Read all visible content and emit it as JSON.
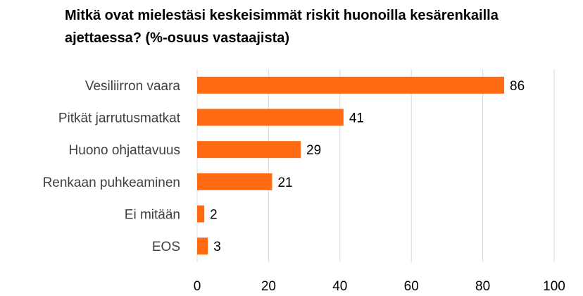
{
  "chart_data": {
    "type": "bar",
    "orientation": "horizontal",
    "title": "Mitkä ovat mielestäsi keskeisimmät riskit huonoilla kesärenkailla ajettaessa? (%-osuus vastaajista)",
    "categories": [
      "Vesiliirron vaara",
      "Pitkät jarrutusmatkat",
      "Huono ohjattavuus",
      "Renkaan puhkeaminen",
      "Ei mitään",
      "EOS"
    ],
    "values": [
      86,
      41,
      29,
      21,
      2,
      3
    ],
    "xlim": [
      0,
      100
    ],
    "xticks": [
      0,
      20,
      40,
      60,
      80,
      100
    ],
    "grid": true,
    "legend": "none",
    "bar_color": "#FF6A13",
    "grid_color": "#D9D9D9"
  }
}
